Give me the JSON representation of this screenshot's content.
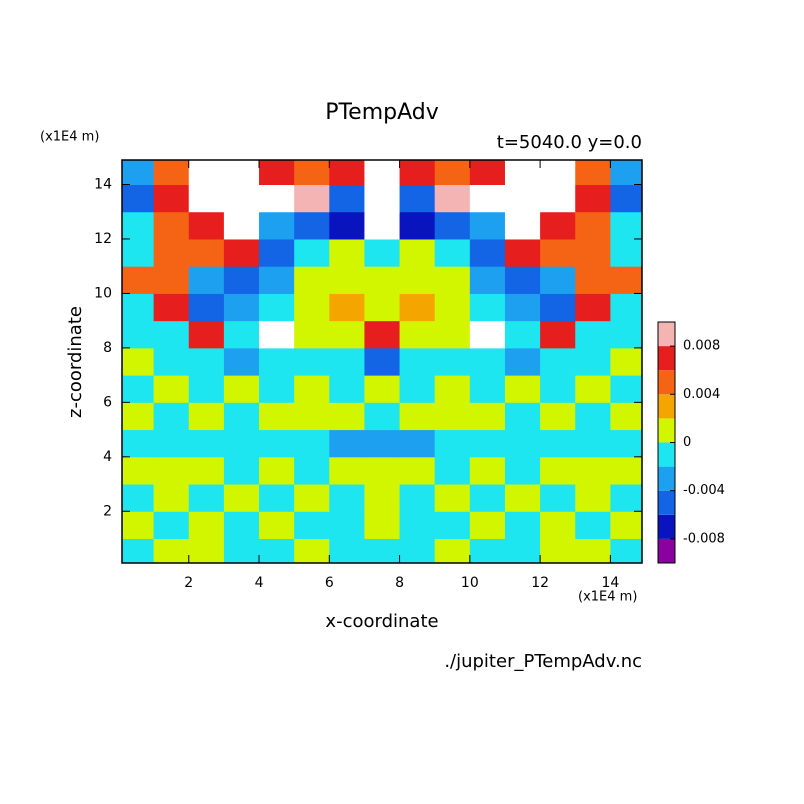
{
  "chart_data": {
    "type": "contour",
    "title": "PTempAdv",
    "subtitle": "t=5040.0 y=0.0",
    "xlabel": "x-coordinate",
    "ylabel": "z-coordinate",
    "xunit": "(x1E4 m)",
    "yunit": "(x1E4 m)",
    "footer": "./jupiter_PTempAdv.nc",
    "xlim": [
      0.1,
      14.9
    ],
    "ylim": [
      0.1,
      14.9
    ],
    "xticks": [
      2,
      4,
      6,
      8,
      10,
      12,
      14
    ],
    "yticks": [
      2,
      4,
      6,
      8,
      10,
      12,
      14
    ],
    "x": [
      0.5,
      1.5,
      2.5,
      3.5,
      4.5,
      5.5,
      6.5,
      7.5,
      8.5,
      9.5,
      10.5,
      11.5,
      12.5,
      13.5,
      14.5
    ],
    "y": [
      0.5,
      1.5,
      2.5,
      3.5,
      4.5,
      5.5,
      6.5,
      7.5,
      8.5,
      9.5,
      10.5,
      11.5,
      12.5,
      13.5,
      14.5
    ],
    "z": [
      [
        -0.001,
        0.001,
        0.001,
        -0.001,
        -0.001,
        0.001,
        -0.001,
        -0.001,
        -0.001,
        0.001,
        -0.001,
        -0.001,
        0.001,
        0.001,
        -0.001
      ],
      [
        0.001,
        -0.001,
        0.001,
        -0.001,
        0.001,
        -0.001,
        -0.001,
        0.001,
        -0.001,
        -0.001,
        0.001,
        -0.001,
        0.001,
        -0.001,
        0.001
      ],
      [
        -0.001,
        0.001,
        -0.001,
        0.001,
        -0.001,
        0.001,
        -0.001,
        0.001,
        -0.001,
        0.001,
        -0.001,
        0.001,
        -0.001,
        0.001,
        -0.001
      ],
      [
        0.001,
        0.001,
        0.001,
        -0.001,
        0.001,
        -0.001,
        0.001,
        0.001,
        0.001,
        -0.001,
        0.001,
        -0.001,
        0.001,
        0.001,
        0.001
      ],
      [
        -0.001,
        -0.001,
        -0.001,
        -0.001,
        -0.001,
        -0.001,
        -0.003,
        -0.003,
        -0.003,
        -0.001,
        -0.001,
        -0.001,
        -0.001,
        -0.001,
        -0.001
      ],
      [
        0.001,
        -0.001,
        0.001,
        -0.001,
        0.001,
        0.001,
        0.001,
        -0.001,
        0.001,
        0.001,
        0.001,
        -0.001,
        0.001,
        -0.001,
        0.001
      ],
      [
        -0.001,
        0.001,
        -0.001,
        0.001,
        -0.001,
        0.001,
        -0.001,
        0.001,
        -0.001,
        0.001,
        -0.001,
        0.001,
        -0.001,
        0.001,
        -0.001
      ],
      [
        0.001,
        -0.001,
        -0.001,
        -0.003,
        -0.001,
        -0.001,
        -0.001,
        -0.005,
        -0.001,
        -0.001,
        -0.001,
        -0.003,
        -0.001,
        -0.001,
        0.001
      ],
      [
        -0.001,
        -0.001,
        0.007,
        -0.001,
        0.011,
        0.001,
        0.001,
        0.007,
        0.001,
        0.001,
        0.011,
        -0.001,
        0.007,
        -0.001,
        -0.001
      ],
      [
        -0.001,
        0.007,
        -0.005,
        -0.003,
        -0.001,
        0.001,
        0.003,
        0.001,
        0.003,
        0.001,
        -0.001,
        -0.003,
        -0.005,
        0.007,
        -0.001
      ],
      [
        0.005,
        0.005,
        -0.003,
        -0.005,
        -0.003,
        0.001,
        0.001,
        0.001,
        0.001,
        0.001,
        -0.003,
        -0.005,
        -0.003,
        0.005,
        0.005
      ],
      [
        -0.001,
        0.005,
        0.005,
        0.007,
        -0.005,
        -0.001,
        0.001,
        -0.001,
        0.001,
        -0.001,
        -0.005,
        0.007,
        0.005,
        0.005,
        -0.001
      ],
      [
        -0.001,
        0.005,
        0.007,
        0.011,
        -0.003,
        -0.005,
        -0.007,
        0.011,
        -0.007,
        -0.005,
        -0.003,
        0.011,
        0.007,
        0.005,
        -0.001
      ],
      [
        -0.005,
        0.007,
        0.011,
        0.011,
        0.011,
        0.009,
        -0.005,
        0.011,
        -0.005,
        0.009,
        0.011,
        0.011,
        0.011,
        0.007,
        -0.005
      ],
      [
        -0.003,
        0.005,
        0.011,
        0.011,
        0.007,
        0.005,
        0.007,
        0.011,
        0.007,
        0.005,
        0.007,
        0.011,
        0.011,
        0.005,
        -0.003
      ]
    ],
    "levels": [
      -0.01,
      -0.008,
      -0.006,
      -0.004,
      -0.002,
      0,
      0.002,
      0.004,
      0.006,
      0.008,
      0.01
    ],
    "colors": [
      "#8b00a0",
      "#0a14be",
      "#1464e6",
      "#1ea0f0",
      "#1ee6f0",
      "#d2f500",
      "#f5a500",
      "#f56414",
      "#e61e1e",
      "#f5b4b4"
    ],
    "over_color": "#ffffff",
    "colorbar_ticks": [
      -0.008,
      -0.004,
      0,
      0.004,
      0.008
    ]
  }
}
